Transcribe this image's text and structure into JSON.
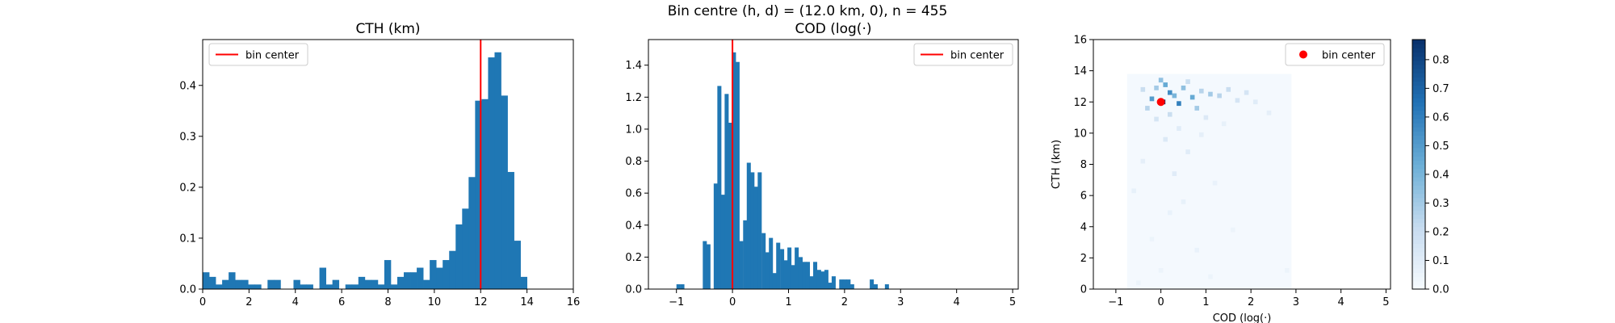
{
  "figure": {
    "suptitle": "Bin centre (h, d) = (12.0 km, 0), n = 455",
    "colors": {
      "bar": "#1f77b4",
      "marker": "#ff0000",
      "axis": "#000000"
    }
  },
  "chart_data": [
    {
      "type": "bar",
      "title": "CTH (km)",
      "xlabel": "",
      "ylabel": "",
      "xlim": [
        0,
        16
      ],
      "ylim": [
        0,
        0.49
      ],
      "xticks": [
        0,
        2,
        4,
        6,
        8,
        10,
        12,
        14,
        16
      ],
      "yticks": [
        0.0,
        0.1,
        0.2,
        0.3,
        0.4
      ],
      "ytick_labels": [
        "0.0",
        "0.1",
        "0.2",
        "0.3",
        "0.4"
      ],
      "bin_width": 0.279,
      "bins": [
        [
          0.0,
          0.033
        ],
        [
          0.28,
          0.024
        ],
        [
          0.56,
          0.009
        ],
        [
          0.84,
          0.018
        ],
        [
          1.12,
          0.033
        ],
        [
          1.4,
          0.018
        ],
        [
          1.68,
          0.018
        ],
        [
          1.96,
          0.009
        ],
        [
          2.24,
          0.009
        ],
        [
          2.52,
          0.0
        ],
        [
          2.8,
          0.018
        ],
        [
          3.08,
          0.018
        ],
        [
          3.36,
          0.0
        ],
        [
          3.64,
          0.0
        ],
        [
          3.92,
          0.018
        ],
        [
          4.2,
          0.009
        ],
        [
          4.48,
          0.009
        ],
        [
          4.76,
          0.0
        ],
        [
          5.04,
          0.042
        ],
        [
          5.32,
          0.009
        ],
        [
          5.6,
          0.018
        ],
        [
          5.88,
          0.0
        ],
        [
          6.16,
          0.009
        ],
        [
          6.44,
          0.009
        ],
        [
          6.72,
          0.024
        ],
        [
          7.0,
          0.018
        ],
        [
          7.28,
          0.018
        ],
        [
          7.56,
          0.009
        ],
        [
          7.84,
          0.057
        ],
        [
          8.12,
          0.009
        ],
        [
          8.4,
          0.024
        ],
        [
          8.68,
          0.033
        ],
        [
          8.96,
          0.033
        ],
        [
          9.24,
          0.042
        ],
        [
          9.52,
          0.018
        ],
        [
          9.8,
          0.057
        ],
        [
          10.08,
          0.042
        ],
        [
          10.36,
          0.057
        ],
        [
          10.64,
          0.075
        ],
        [
          10.92,
          0.127
        ],
        [
          11.2,
          0.158
        ],
        [
          11.48,
          0.22
        ],
        [
          11.76,
          0.37
        ],
        [
          12.04,
          0.373
        ],
        [
          12.32,
          0.455
        ],
        [
          12.6,
          0.465
        ],
        [
          12.88,
          0.38
        ],
        [
          13.16,
          0.23
        ],
        [
          13.44,
          0.095
        ],
        [
          13.72,
          0.024
        ]
      ],
      "marker_line": {
        "x": 12.0,
        "label": "bin center"
      },
      "legend": {
        "position": "upper left",
        "entries": [
          "bin center"
        ]
      }
    },
    {
      "type": "bar",
      "title": "COD (log(·)",
      "xlabel": "",
      "ylabel": "",
      "xlim": [
        -1.5,
        5.1
      ],
      "ylim": [
        0,
        1.56
      ],
      "xticks": [
        -1,
        0,
        1,
        2,
        3,
        4,
        5
      ],
      "xtick_labels": [
        "−1",
        "0",
        "1",
        "2",
        "3",
        "4",
        "5"
      ],
      "yticks": [
        0.0,
        0.2,
        0.4,
        0.6,
        0.8,
        1.0,
        1.2,
        1.4
      ],
      "ytick_labels": [
        "0.0",
        "0.2",
        "0.4",
        "0.6",
        "0.8",
        "1.0",
        "1.2",
        "1.4"
      ],
      "bin_width": 0.0665,
      "bins": [
        [
          -0.53,
          0.3
        ],
        [
          -0.465,
          0.28
        ],
        [
          -0.4,
          0.0
        ],
        [
          -0.335,
          0.66
        ],
        [
          -0.27,
          1.27
        ],
        [
          -0.205,
          0.59
        ],
        [
          -0.14,
          1.22
        ],
        [
          -0.075,
          1.04
        ],
        [
          -0.01,
          1.48
        ],
        [
          0.055,
          1.42
        ],
        [
          0.12,
          0.3
        ],
        [
          0.19,
          0.43
        ],
        [
          0.255,
          0.79
        ],
        [
          0.32,
          0.73
        ],
        [
          0.385,
          0.64
        ],
        [
          0.45,
          0.73
        ],
        [
          0.52,
          0.35
        ],
        [
          0.585,
          0.23
        ],
        [
          0.65,
          0.32
        ],
        [
          0.715,
          0.1
        ],
        [
          0.78,
          0.29
        ],
        [
          0.85,
          0.25
        ],
        [
          0.915,
          0.18
        ],
        [
          0.98,
          0.26
        ],
        [
          1.045,
          0.15
        ],
        [
          1.11,
          0.26
        ],
        [
          1.18,
          0.2
        ],
        [
          1.245,
          0.17
        ],
        [
          1.31,
          0.17
        ],
        [
          1.375,
          0.08
        ],
        [
          1.44,
          0.17
        ],
        [
          1.51,
          0.12
        ],
        [
          1.575,
          0.11
        ],
        [
          1.64,
          0.12
        ],
        [
          1.705,
          0.04
        ],
        [
          1.77,
          0.08
        ],
        [
          1.835,
          0.0
        ],
        [
          1.905,
          0.06
        ],
        [
          1.97,
          0.06
        ],
        [
          2.035,
          0.06
        ],
        [
          2.1,
          0.03
        ]
      ],
      "extra_bins": [
        [
          -1.0,
          0.03
        ],
        [
          -0.93,
          0.03
        ],
        [
          2.45,
          0.06
        ],
        [
          2.52,
          0.03
        ],
        [
          2.72,
          0.03
        ]
      ],
      "marker_line": {
        "x": 0.0,
        "label": "bin center"
      },
      "legend": {
        "position": "upper right",
        "entries": [
          "bin center"
        ]
      }
    },
    {
      "type": "heatmap",
      "title": "",
      "xlabel": "COD (log(·)",
      "ylabel": "CTH (km)",
      "xlim": [
        -1.5,
        5.1
      ],
      "ylim": [
        0,
        16
      ],
      "xticks": [
        -1,
        0,
        1,
        2,
        3,
        4,
        5
      ],
      "xtick_labels": [
        "−1",
        "0",
        "1",
        "2",
        "3",
        "4",
        "5"
      ],
      "yticks": [
        0,
        2,
        4,
        6,
        8,
        10,
        12,
        14,
        16
      ],
      "colorbar": {
        "range": [
          0,
          0.87
        ],
        "ticks": [
          0.0,
          0.1,
          0.2,
          0.3,
          0.4,
          0.5,
          0.6,
          0.7,
          0.8
        ],
        "tick_labels": [
          "0.0",
          "0.1",
          "0.2",
          "0.3",
          "0.4",
          "0.5",
          "0.6",
          "0.7",
          "0.8"
        ],
        "colormap": "Blues"
      },
      "background_region": {
        "x": [
          -0.75,
          2.9
        ],
        "y": [
          0,
          13.8
        ]
      },
      "cells": [
        [
          0.0,
          13.4,
          0.35
        ],
        [
          0.1,
          13.1,
          0.45
        ],
        [
          -0.1,
          12.9,
          0.3
        ],
        [
          0.2,
          12.6,
          0.55
        ],
        [
          0.3,
          12.4,
          0.4
        ],
        [
          -0.2,
          12.2,
          0.5
        ],
        [
          0.5,
          12.9,
          0.35
        ],
        [
          0.7,
          12.3,
          0.45
        ],
        [
          0.9,
          12.7,
          0.25
        ],
        [
          1.1,
          12.5,
          0.3
        ],
        [
          1.3,
          12.4,
          0.25
        ],
        [
          1.5,
          12.8,
          0.2
        ],
        [
          1.7,
          12.1,
          0.15
        ],
        [
          -0.4,
          12.8,
          0.2
        ],
        [
          0.8,
          11.6,
          0.3
        ],
        [
          0.4,
          11.9,
          0.6
        ],
        [
          0.05,
          12.0,
          0.87
        ],
        [
          -0.3,
          11.6,
          0.25
        ],
        [
          0.6,
          13.3,
          0.2
        ],
        [
          1.9,
          12.6,
          0.15
        ],
        [
          2.1,
          12.0,
          0.1
        ],
        [
          0.2,
          11.2,
          0.2
        ],
        [
          -0.1,
          10.9,
          0.15
        ],
        [
          0.4,
          10.3,
          0.1
        ],
        [
          0.1,
          9.6,
          0.12
        ],
        [
          0.6,
          8.8,
          0.1
        ],
        [
          -0.4,
          8.2,
          0.08
        ],
        [
          0.3,
          7.4,
          0.1
        ],
        [
          -0.6,
          6.3,
          0.07
        ],
        [
          0.5,
          5.6,
          0.07
        ],
        [
          1.2,
          6.8,
          0.06
        ],
        [
          0.2,
          4.9,
          0.06
        ],
        [
          -0.2,
          3.2,
          0.05
        ],
        [
          0.8,
          2.5,
          0.06
        ],
        [
          0.0,
          1.2,
          0.05
        ],
        [
          1.1,
          0.8,
          0.05
        ],
        [
          2.8,
          1.2,
          0.05
        ],
        [
          -0.5,
          0.4,
          0.05
        ],
        [
          1.6,
          3.8,
          0.05
        ],
        [
          2.4,
          11.3,
          0.08
        ],
        [
          1.0,
          11.0,
          0.12
        ],
        [
          0.9,
          9.9,
          0.08
        ],
        [
          1.4,
          10.6,
          0.07
        ]
      ],
      "marker_point": {
        "x": 0.0,
        "y": 12.0,
        "label": "bin center"
      },
      "legend": {
        "position": "upper right",
        "entries": [
          "bin center"
        ]
      }
    }
  ]
}
